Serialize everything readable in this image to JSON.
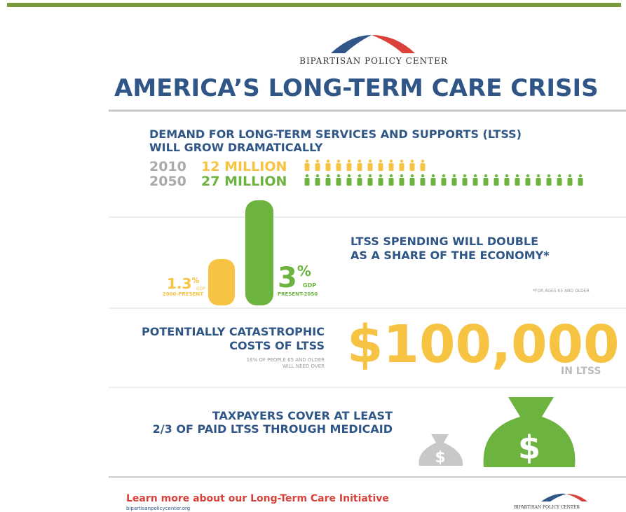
{
  "header": {
    "org": "BIPARTISAN POLICY CENTER",
    "title": "AMERICA’S LONG-TERM CARE CRISIS"
  },
  "demand": {
    "headline": [
      "DEMAND FOR LONG-TERM SERVICES AND SUPPORTS (LTSS)",
      "WILL GROW DRAMATICALLY"
    ],
    "rows": [
      {
        "year": "2010",
        "amount": 12,
        "unit": "MILLION"
      },
      {
        "year": "2050",
        "amount": 27,
        "unit": "MILLION"
      }
    ]
  },
  "spending": {
    "bars": [
      {
        "value": "1.3",
        "unit": "%",
        "measure": "GDP",
        "period": "2000-PRESENT"
      },
      {
        "value": "3",
        "unit": "%",
        "measure": "GDP",
        "period": "PRESENT-2050"
      }
    ],
    "headline": [
      "LTSS SPENDING WILL DOUBLE",
      "AS A SHARE OF THE ECONOMY*"
    ],
    "footnote": "*FOR AGES 65 AND OLDER"
  },
  "costs": {
    "headline": [
      "POTENTIALLY CATASTROPHIC",
      "COSTS OF LTSS"
    ],
    "note": [
      "16% OF PEOPLE 65 AND OLDER",
      "WILL NEED OVER"
    ],
    "amount": "$100,000",
    "suffix": "IN LTSS"
  },
  "medicaid": {
    "headline": [
      "TAXPAYERS COVER AT LEAST",
      "2/3 OF PAID LTSS THROUGH MEDICAID"
    ],
    "bag_symbol": "$"
  },
  "footer": {
    "link": "Learn more about our Long-Term Care Initiative",
    "url": "bipartisanpolicycenter.org",
    "org": "BIPARTISAN POLICY CENTER"
  }
}
